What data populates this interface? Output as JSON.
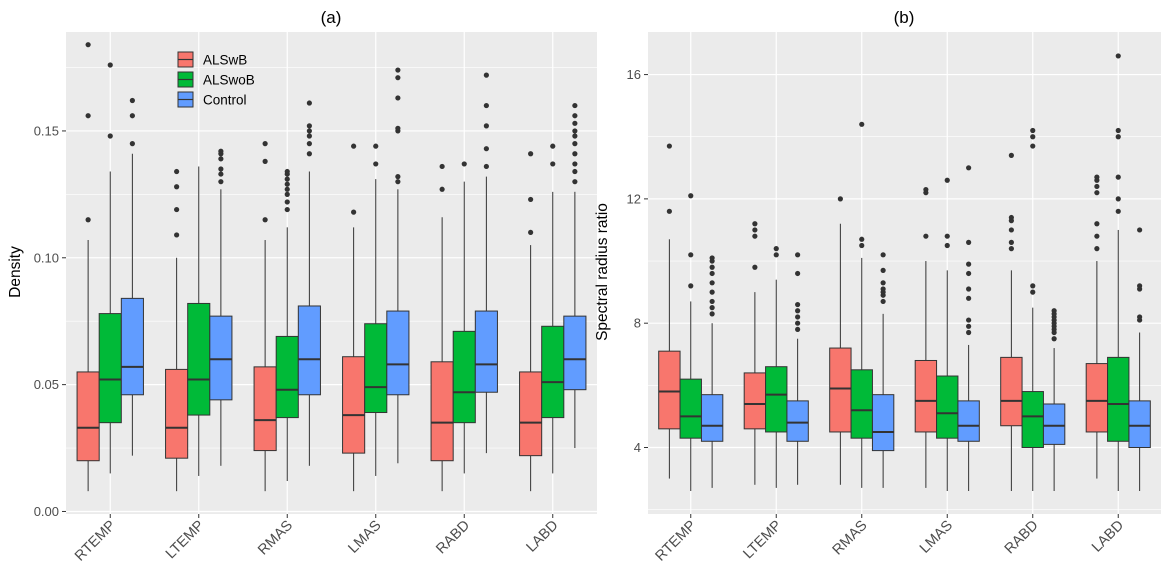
{
  "colors": {
    "ALSwB": "#F8766D",
    "ALSwoB": "#00BA38",
    "Control": "#619CFF",
    "panel": "#EBEBEB",
    "grid": "#FFFFFF",
    "outlier": "#333333"
  },
  "legend": {
    "position": "top-left",
    "entries": [
      "ALSwB",
      "ALSwoB",
      "Control"
    ]
  },
  "chart_data": [
    {
      "type": "boxplot",
      "title": "(a)",
      "xlabel": "",
      "ylabel": "Density",
      "categories": [
        "RTEMP",
        "LTEMP",
        "RMAS",
        "LMAS",
        "RABD",
        "LABD"
      ],
      "ylim": [
        -0.001,
        0.189
      ],
      "yticks": [
        0,
        0.05,
        0.1,
        0.15
      ],
      "ytick_labels": [
        "0.00",
        "0.05",
        "0.10",
        "0.15"
      ],
      "series": [
        {
          "name": "ALSwB",
          "boxes": [
            {
              "q1": 0.02,
              "median": 0.033,
              "q3": 0.055,
              "whisker_low": 0.008,
              "whisker_high": 0.107,
              "outliers": [
                0.115,
                0.156,
                0.184
              ]
            },
            {
              "q1": 0.021,
              "median": 0.033,
              "q3": 0.056,
              "whisker_low": 0.008,
              "whisker_high": 0.1,
              "outliers": [
                0.109,
                0.119,
                0.128,
                0.134
              ]
            },
            {
              "q1": 0.024,
              "median": 0.036,
              "q3": 0.057,
              "whisker_low": 0.008,
              "whisker_high": 0.107,
              "outliers": [
                0.115,
                0.138,
                0.145
              ]
            },
            {
              "q1": 0.023,
              "median": 0.038,
              "q3": 0.061,
              "whisker_low": 0.008,
              "whisker_high": 0.112,
              "outliers": [
                0.118,
                0.144
              ]
            },
            {
              "q1": 0.02,
              "median": 0.035,
              "q3": 0.059,
              "whisker_low": 0.008,
              "whisker_high": 0.116,
              "outliers": [
                0.127,
                0.136
              ]
            },
            {
              "q1": 0.022,
              "median": 0.035,
              "q3": 0.055,
              "whisker_low": 0.008,
              "whisker_high": 0.105,
              "outliers": [
                0.11,
                0.123,
                0.141
              ]
            }
          ]
        },
        {
          "name": "ALSwoB",
          "boxes": [
            {
              "q1": 0.035,
              "median": 0.052,
              "q3": 0.078,
              "whisker_low": 0.015,
              "whisker_high": 0.134,
              "outliers": [
                0.148,
                0.176
              ]
            },
            {
              "q1": 0.038,
              "median": 0.052,
              "q3": 0.082,
              "whisker_low": 0.014,
              "whisker_high": 0.136,
              "outliers": []
            },
            {
              "q1": 0.037,
              "median": 0.048,
              "q3": 0.069,
              "whisker_low": 0.012,
              "whisker_high": 0.112,
              "outliers": [
                0.119,
                0.122,
                0.125,
                0.127,
                0.129,
                0.131,
                0.133,
                0.134
              ]
            },
            {
              "q1": 0.039,
              "median": 0.049,
              "q3": 0.074,
              "whisker_low": 0.014,
              "whisker_high": 0.131,
              "outliers": [
                0.137,
                0.144
              ]
            },
            {
              "q1": 0.035,
              "median": 0.047,
              "q3": 0.071,
              "whisker_low": 0.015,
              "whisker_high": 0.13,
              "outliers": [
                0.137
              ]
            },
            {
              "q1": 0.037,
              "median": 0.051,
              "q3": 0.073,
              "whisker_low": 0.015,
              "whisker_high": 0.126,
              "outliers": [
                0.137,
                0.144
              ]
            }
          ]
        },
        {
          "name": "Control",
          "boxes": [
            {
              "q1": 0.046,
              "median": 0.057,
              "q3": 0.084,
              "whisker_low": 0.022,
              "whisker_high": 0.141,
              "outliers": [
                0.145,
                0.156,
                0.162
              ]
            },
            {
              "q1": 0.044,
              "median": 0.06,
              "q3": 0.077,
              "whisker_low": 0.018,
              "whisker_high": 0.127,
              "outliers": [
                0.13,
                0.133,
                0.135,
                0.139,
                0.141,
                0.142
              ]
            },
            {
              "q1": 0.046,
              "median": 0.06,
              "q3": 0.081,
              "whisker_low": 0.018,
              "whisker_high": 0.134,
              "outliers": [
                0.141,
                0.145,
                0.148,
                0.15,
                0.152,
                0.161
              ]
            },
            {
              "q1": 0.046,
              "median": 0.058,
              "q3": 0.079,
              "whisker_low": 0.019,
              "whisker_high": 0.127,
              "outliers": [
                0.13,
                0.132,
                0.15,
                0.151,
                0.163,
                0.171,
                0.174
              ]
            },
            {
              "q1": 0.047,
              "median": 0.058,
              "q3": 0.079,
              "whisker_low": 0.023,
              "whisker_high": 0.132,
              "outliers": [
                0.136,
                0.143,
                0.152,
                0.16,
                0.172
              ]
            },
            {
              "q1": 0.048,
              "median": 0.06,
              "q3": 0.077,
              "whisker_low": 0.025,
              "whisker_high": 0.126,
              "outliers": [
                0.13,
                0.134,
                0.137,
                0.141,
                0.145,
                0.148,
                0.15,
                0.153,
                0.156,
                0.16
              ]
            }
          ]
        }
      ]
    },
    {
      "type": "boxplot",
      "title": "(b)",
      "xlabel": "",
      "ylabel": "Spectral radius ratio",
      "categories": [
        "RTEMP",
        "LTEMP",
        "RMAS",
        "LMAS",
        "RABD",
        "LABD"
      ],
      "ylim": [
        1.86,
        17.37
      ],
      "yticks": [
        4,
        8,
        12,
        16
      ],
      "ytick_labels": [
        "4",
        "8",
        "12",
        "16"
      ],
      "series": [
        {
          "name": "ALSwB",
          "boxes": [
            {
              "q1": 4.6,
              "median": 5.8,
              "q3": 7.1,
              "whisker_low": 3.0,
              "whisker_high": 10.7,
              "outliers": [
                11.6,
                13.7
              ]
            },
            {
              "q1": 4.6,
              "median": 5.4,
              "q3": 6.4,
              "whisker_low": 2.8,
              "whisker_high": 9.0,
              "outliers": [
                9.8,
                10.8,
                11.0,
                11.2
              ]
            },
            {
              "q1": 4.5,
              "median": 5.9,
              "q3": 7.2,
              "whisker_low": 2.8,
              "whisker_high": 11.2,
              "outliers": [
                12.0
              ]
            },
            {
              "q1": 4.5,
              "median": 5.5,
              "q3": 6.8,
              "whisker_low": 2.7,
              "whisker_high": 10.0,
              "outliers": [
                10.8,
                12.2,
                12.3
              ]
            },
            {
              "q1": 4.7,
              "median": 5.5,
              "q3": 6.9,
              "whisker_low": 2.6,
              "whisker_high": 9.7,
              "outliers": [
                10.4,
                10.6,
                11.0,
                11.3,
                11.4,
                13.4
              ]
            },
            {
              "q1": 4.5,
              "median": 5.5,
              "q3": 6.7,
              "whisker_low": 3.0,
              "whisker_high": 10.0,
              "outliers": [
                10.4,
                10.8,
                11.2,
                12.2,
                12.4,
                12.6,
                12.7
              ]
            }
          ]
        },
        {
          "name": "ALSwoB",
          "boxes": [
            {
              "q1": 4.3,
              "median": 5.0,
              "q3": 6.2,
              "whisker_low": 2.6,
              "whisker_high": 8.7,
              "outliers": [
                9.2,
                10.2,
                12.1
              ]
            },
            {
              "q1": 4.5,
              "median": 5.7,
              "q3": 6.6,
              "whisker_low": 2.7,
              "whisker_high": 9.4,
              "outliers": [
                10.2,
                10.4
              ]
            },
            {
              "q1": 4.3,
              "median": 5.2,
              "q3": 6.5,
              "whisker_low": 2.7,
              "whisker_high": 10.1,
              "outliers": [
                10.5,
                10.7,
                14.4
              ]
            },
            {
              "q1": 4.3,
              "median": 5.1,
              "q3": 6.3,
              "whisker_low": 2.6,
              "whisker_high": 9.7,
              "outliers": [
                10.5,
                10.8,
                12.6
              ]
            },
            {
              "q1": 4.0,
              "median": 5.0,
              "q3": 5.8,
              "whisker_low": 2.6,
              "whisker_high": 8.5,
              "outliers": [
                9.0,
                9.2,
                13.7,
                14.0,
                14.2
              ]
            },
            {
              "q1": 4.2,
              "median": 5.4,
              "q3": 6.9,
              "whisker_low": 2.6,
              "whisker_high": 11.0,
              "outliers": [
                11.6,
                12.0,
                12.7,
                14.0,
                14.2,
                16.6
              ]
            }
          ]
        },
        {
          "name": "Control",
          "boxes": [
            {
              "q1": 4.2,
              "median": 4.7,
              "q3": 5.7,
              "whisker_low": 2.7,
              "whisker_high": 8.0,
              "outliers": [
                8.3,
                8.5,
                8.7,
                9.0,
                9.3,
                9.6,
                9.8,
                10.0,
                10.1
              ]
            },
            {
              "q1": 4.2,
              "median": 4.8,
              "q3": 5.5,
              "whisker_low": 2.8,
              "whisker_high": 7.5,
              "outliers": [
                7.8,
                8.0,
                8.2,
                8.4,
                8.6,
                9.6,
                10.2
              ]
            },
            {
              "q1": 3.9,
              "median": 4.5,
              "q3": 5.7,
              "whisker_low": 2.7,
              "whisker_high": 8.3,
              "outliers": [
                8.7,
                8.9,
                9.0,
                9.1,
                9.3,
                9.7,
                10.2
              ]
            },
            {
              "q1": 4.2,
              "median": 4.7,
              "q3": 5.5,
              "whisker_low": 2.6,
              "whisker_high": 7.3,
              "outliers": [
                7.7,
                7.9,
                8.1,
                8.8,
                9.1,
                9.6,
                9.9,
                10.6,
                13.0
              ]
            },
            {
              "q1": 4.1,
              "median": 4.7,
              "q3": 5.4,
              "whisker_low": 2.6,
              "whisker_high": 7.2,
              "outliers": [
                7.5,
                7.7,
                7.8,
                7.9,
                8.0,
                8.1,
                8.2,
                8.3,
                8.4
              ]
            },
            {
              "q1": 4.0,
              "median": 4.7,
              "q3": 5.5,
              "whisker_low": 2.6,
              "whisker_high": 7.7,
              "outliers": [
                8.1,
                8.2,
                9.1,
                9.2,
                11.0
              ]
            }
          ]
        }
      ]
    }
  ]
}
